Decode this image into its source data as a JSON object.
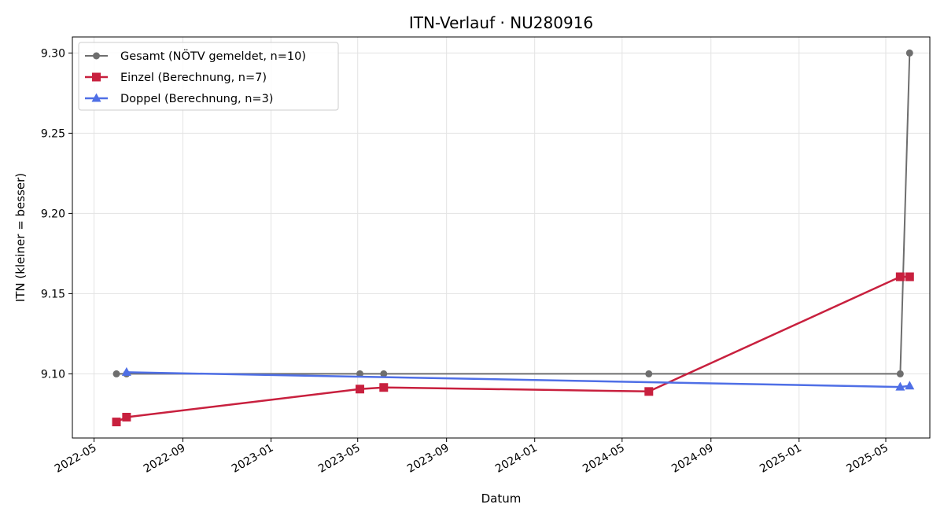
{
  "chart_data": {
    "type": "line",
    "title": "ITN-Verlauf · NU280916",
    "xlabel": "Datum",
    "ylabel": "ITN  (kleiner = besser)",
    "x_ticks": [
      "2022-05",
      "2022-09",
      "2023-01",
      "2023-05",
      "2023-09",
      "2024-01",
      "2024-05",
      "2024-09",
      "2025-01",
      "2025-05"
    ],
    "y_ticks": [
      "9.10",
      "9.15",
      "9.20",
      "9.25",
      "9.30"
    ],
    "xlim": [
      "2022-04-01",
      "2025-07-01"
    ],
    "ylim": [
      9.06,
      9.31
    ],
    "grid": true,
    "legend_position": "top-left",
    "series": [
      {
        "name": "Gesamt (NÖTV gemeldet, n=10)",
        "color": "#6e6e6e",
        "marker": "circle",
        "points": [
          {
            "x": "2022-06-01",
            "y": 9.1
          },
          {
            "x": "2022-06-15",
            "y": 9.1
          },
          {
            "x": "2023-05-04",
            "y": 9.1
          },
          {
            "x": "2023-06-06",
            "y": 9.1
          },
          {
            "x": "2024-06-07",
            "y": 9.1
          },
          {
            "x": "2025-05-21",
            "y": 9.1
          },
          {
            "x": "2025-06-03",
            "y": 9.3
          }
        ]
      },
      {
        "name": "Einzel (Berechnung, n=7)",
        "color": "#c8203e",
        "marker": "square",
        "points": [
          {
            "x": "2022-06-01",
            "y": 9.07
          },
          {
            "x": "2022-06-15",
            "y": 9.073
          },
          {
            "x": "2023-05-04",
            "y": 9.0905
          },
          {
            "x": "2023-06-06",
            "y": 9.0915
          },
          {
            "x": "2024-06-07",
            "y": 9.089
          },
          {
            "x": "2025-05-21",
            "y": 9.1605
          },
          {
            "x": "2025-06-03",
            "y": 9.1605
          }
        ]
      },
      {
        "name": "Doppel (Berechnung, n=3)",
        "color": "#4f6fe6",
        "marker": "triangle",
        "points": [
          {
            "x": "2022-06-15",
            "y": 9.101
          },
          {
            "x": "2025-05-21",
            "y": 9.0918
          },
          {
            "x": "2025-06-03",
            "y": 9.0925
          }
        ]
      }
    ]
  }
}
